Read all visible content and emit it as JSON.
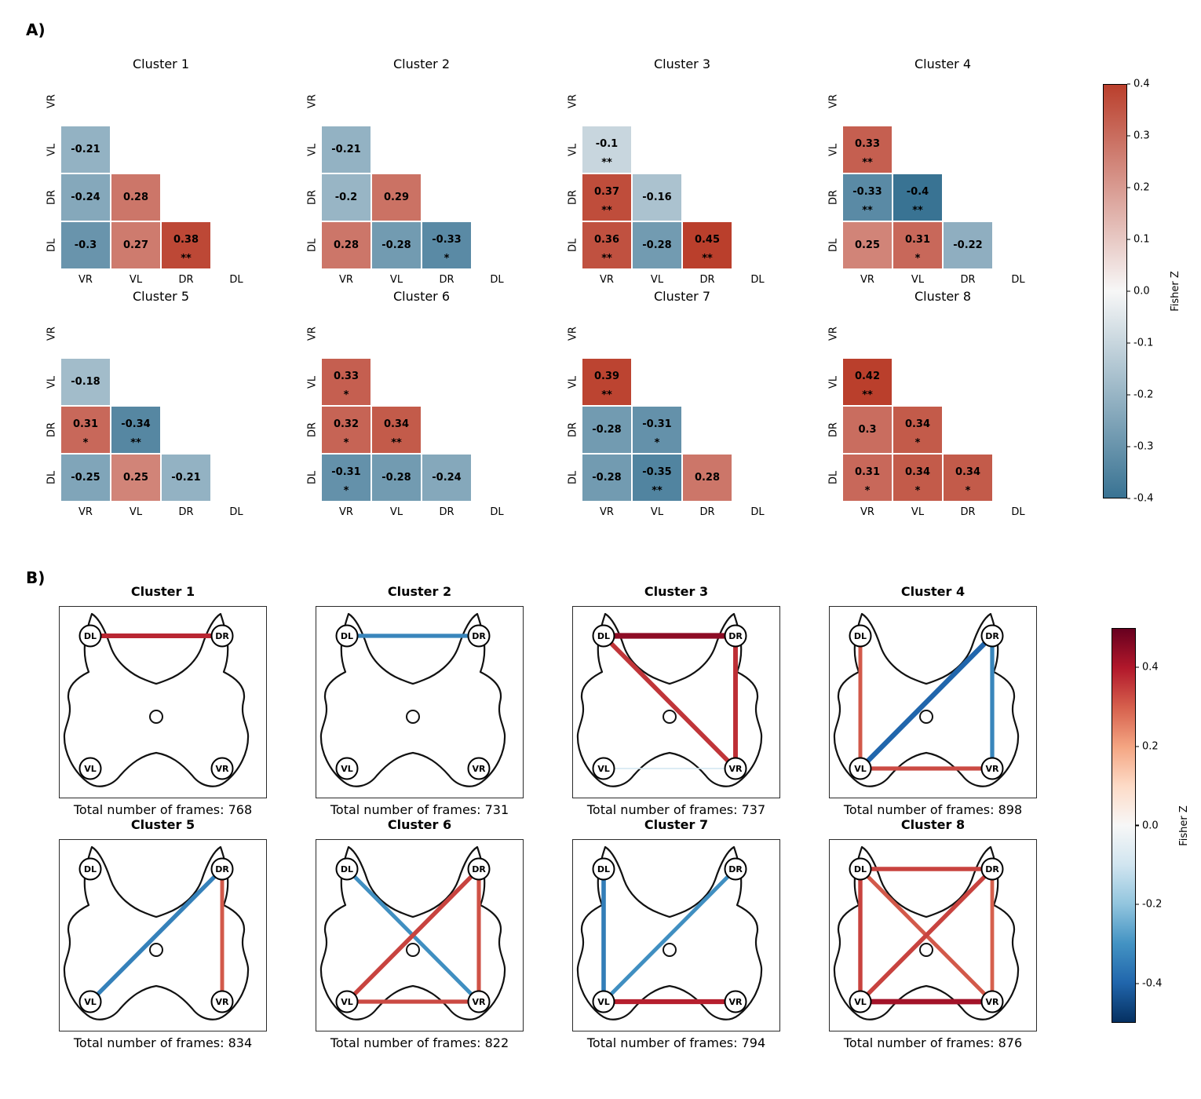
{
  "figure": {
    "panel_a_label": "A)",
    "panel_b_label": "B)"
  },
  "chart_data": {
    "panel_a": {
      "type": "heatmap",
      "description": "Lower-triangular Fisher Z correlation matrices per cluster",
      "axis_labels": [
        "VR",
        "VL",
        "DR",
        "DL"
      ],
      "pairs": [
        "VL-VR",
        "DR-VR",
        "DR-VL",
        "DL-VR",
        "DL-VL",
        "DL-DR"
      ],
      "colorbar": {
        "label": "Fisher Z",
        "vmin": -0.4,
        "vmax": 0.4,
        "ticks": [
          "0.4",
          "0.3",
          "0.2",
          "0.1",
          "0.0",
          "-0.1",
          "-0.2",
          "-0.3",
          "-0.4"
        ]
      },
      "clusters": [
        {
          "title": "Cluster 1",
          "values": [
            -0.21,
            -0.24,
            0.28,
            -0.3,
            0.27,
            0.38
          ],
          "sig": [
            "",
            "",
            "",
            "",
            "",
            "**"
          ]
        },
        {
          "title": "Cluster 2",
          "values": [
            -0.21,
            -0.2,
            0.29,
            0.28,
            -0.28,
            -0.33
          ],
          "sig": [
            "",
            "",
            "",
            "",
            "",
            "*"
          ]
        },
        {
          "title": "Cluster 3",
          "values": [
            -0.1,
            0.37,
            -0.16,
            0.36,
            -0.28,
            0.45
          ],
          "sig": [
            "**",
            "**",
            "",
            "**",
            "",
            "**"
          ]
        },
        {
          "title": "Cluster 4",
          "values": [
            0.33,
            -0.33,
            -0.4,
            0.25,
            0.31,
            -0.22
          ],
          "sig": [
            "**",
            "**",
            "**",
            "",
            "*",
            ""
          ]
        },
        {
          "title": "Cluster 5",
          "values": [
            -0.18,
            0.31,
            -0.34,
            -0.25,
            0.25,
            -0.21
          ],
          "sig": [
            "",
            "*",
            "**",
            "",
            "",
            ""
          ]
        },
        {
          "title": "Cluster 6",
          "values": [
            0.33,
            0.32,
            0.34,
            -0.31,
            -0.28,
            -0.24
          ],
          "sig": [
            "*",
            "*",
            "**",
            "*",
            "",
            ""
          ]
        },
        {
          "title": "Cluster 7",
          "values": [
            0.39,
            -0.28,
            -0.31,
            -0.28,
            -0.35,
            0.28
          ],
          "sig": [
            "**",
            "",
            "*",
            "",
            "**",
            ""
          ]
        },
        {
          "title": "Cluster 8",
          "values": [
            0.42,
            0.3,
            0.34,
            0.31,
            0.34,
            0.34
          ],
          "sig": [
            "**",
            "",
            "*",
            "*",
            "*",
            "*"
          ]
        }
      ]
    },
    "panel_b": {
      "type": "network",
      "nodes": [
        "DL",
        "DR",
        "VL",
        "VR"
      ],
      "frames_prefix": "Total number of frames: ",
      "colorbar": {
        "label": "Fisher Z",
        "vmin": -0.5,
        "vmax": 0.5,
        "ticks": [
          "0.4",
          "0.2",
          "0.0",
          "-0.2",
          "-0.4"
        ]
      },
      "clusters": [
        {
          "title": "Cluster 1",
          "frames": 768,
          "edges": [
            {
              "from": "DL",
              "to": "DR",
              "value": 0.38
            }
          ]
        },
        {
          "title": "Cluster 2",
          "frames": 731,
          "edges": [
            {
              "from": "DL",
              "to": "DR",
              "value": -0.33
            }
          ]
        },
        {
          "title": "Cluster 3",
          "frames": 737,
          "edges": [
            {
              "from": "VL",
              "to": "VR",
              "value": -0.1
            },
            {
              "from": "DL",
              "to": "VR",
              "value": 0.36
            },
            {
              "from": "DR",
              "to": "VR",
              "value": 0.37
            },
            {
              "from": "DL",
              "to": "DR",
              "value": 0.45
            }
          ]
        },
        {
          "title": "Cluster 4",
          "frames": 898,
          "edges": [
            {
              "from": "VL",
              "to": "VR",
              "value": 0.33
            },
            {
              "from": "DL",
              "to": "VL",
              "value": 0.31
            },
            {
              "from": "DR",
              "to": "VR",
              "value": -0.33
            },
            {
              "from": "DR",
              "to": "VL",
              "value": -0.4
            }
          ]
        },
        {
          "title": "Cluster 5",
          "frames": 834,
          "edges": [
            {
              "from": "DR",
              "to": "VL",
              "value": -0.34
            },
            {
              "from": "DR",
              "to": "VR",
              "value": 0.31
            }
          ]
        },
        {
          "title": "Cluster 6",
          "frames": 822,
          "edges": [
            {
              "from": "DL",
              "to": "VR",
              "value": -0.31
            },
            {
              "from": "DR",
              "to": "VL",
              "value": 0.34
            },
            {
              "from": "DR",
              "to": "VR",
              "value": 0.32
            },
            {
              "from": "VL",
              "to": "VR",
              "value": 0.33
            }
          ]
        },
        {
          "title": "Cluster 7",
          "frames": 794,
          "edges": [
            {
              "from": "DL",
              "to": "VL",
              "value": -0.35
            },
            {
              "from": "DR",
              "to": "VL",
              "value": -0.31
            },
            {
              "from": "VL",
              "to": "VR",
              "value": 0.39
            }
          ]
        },
        {
          "title": "Cluster 8",
          "frames": 876,
          "edges": [
            {
              "from": "DL",
              "to": "DR",
              "value": 0.34
            },
            {
              "from": "DL",
              "to": "VR",
              "value": 0.31
            },
            {
              "from": "DR",
              "to": "VL",
              "value": 0.34
            },
            {
              "from": "DL",
              "to": "VL",
              "value": 0.34
            },
            {
              "from": "DR",
              "to": "VR",
              "value": 0.3
            },
            {
              "from": "VL",
              "to": "VR",
              "value": 0.42
            }
          ]
        }
      ]
    }
  }
}
